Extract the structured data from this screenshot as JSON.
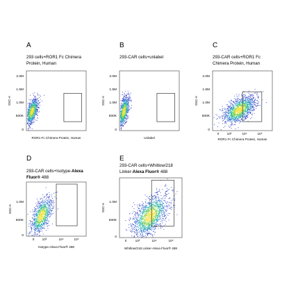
{
  "chart_data": [
    {
      "type": "scatter",
      "letter": "A",
      "title_lines": [
        "293 cells+ROR1 Fc Chimera",
        "Protein, Human"
      ],
      "xlabel": "ROR1 Fc Chimera Protein, Human",
      "ylabel": "SSC-A",
      "x_scale": "log",
      "x_ticks": [],
      "y_ticks": [
        "0",
        "500K",
        "1.0M",
        "1.5M",
        "2.0M"
      ],
      "ylim": [
        0,
        2000000
      ],
      "gate": {
        "x": [
          1000,
          100000
        ],
        "y": [
          300000,
          1250000
        ]
      },
      "population": {
        "center_x_log10": -0.6,
        "center_y": 650000,
        "spread_x_log10": 0.35,
        "spread_y": 220000,
        "count": 900
      }
    },
    {
      "type": "scatter",
      "letter": "B",
      "title_lines": [
        "293-CAR cells+unlabel"
      ],
      "xlabel": "Unlabel",
      "ylabel": "SSC-A",
      "x_scale": "log",
      "x_ticks": [],
      "y_ticks": [
        "0",
        "500K",
        "1.0M",
        "1.5M",
        "2.0M"
      ],
      "ylim": [
        0,
        2000000
      ],
      "gate": {
        "x": [
          1000,
          100000
        ],
        "y": [
          300000,
          1250000
        ]
      },
      "population": {
        "center_x_log10": -0.75,
        "center_y": 650000,
        "spread_x_log10": 0.3,
        "spread_y": 260000,
        "count": 900
      }
    },
    {
      "type": "scatter",
      "letter": "C",
      "title_lines": [
        "293-CAR cells+ROR1 Fc",
        "Chimera Protein, Human"
      ],
      "xlabel": "ROR1 Fc Chimera Protein, Human",
      "ylabel": "SSC-A",
      "x_scale": "log",
      "x_ticks": [
        "0",
        "10³",
        "10⁴",
        "10⁵"
      ],
      "y_ticks": [
        "0",
        "500K",
        "1.0M",
        "1.5M",
        "2.0M"
      ],
      "ylim": [
        0,
        2000000
      ],
      "gate": {
        "x": [
          8000,
          100000
        ],
        "y": [
          300000,
          1300000
        ]
      },
      "population": {
        "center_x_log10": 3.7,
        "center_y": 700000,
        "spread_x_log10": 0.45,
        "spread_y": 230000,
        "count": 1400
      }
    },
    {
      "type": "scatter",
      "letter": "D",
      "title_prefix": "293-CAR cells+Isotype-",
      "title_bold_1": "Alexa",
      "title_bold_2": "Fluor®",
      "title_suffix": " 488",
      "xlabel": "Isotype-Alexa Fluor® 488",
      "ylabel": "SSC-A",
      "x_scale": "log",
      "x_ticks": [
        "0",
        "10³",
        "10⁴",
        "10⁵"
      ],
      "y_ticks": [
        "0",
        "500K",
        "1.0M"
      ],
      "ylim": [
        0,
        1300000
      ],
      "gate": {
        "x": [
          4000,
          100000
        ],
        "y": [
          250000,
          1250000
        ]
      },
      "population": {
        "center_x_log10": 2.6,
        "center_y": 500000,
        "spread_x_log10": 0.35,
        "spread_y": 220000,
        "count": 1000
      }
    },
    {
      "type": "scatter",
      "letter": "E",
      "title_line_1": "293-CAR   cells+Whitlow/218",
      "title_prefix": "Linker-",
      "title_bold": "Alexa Fluor®",
      "title_suffix": " 488",
      "xlabel": "Whitlow/218 Linker-Alexa Fluor® 488",
      "ylabel": "SSC-A",
      "x_scale": "log",
      "x_ticks": [
        "0",
        "10³",
        "10⁴",
        "10⁵"
      ],
      "y_ticks": [
        "0",
        "500K",
        "1.0M"
      ],
      "ylim": [
        0,
        1300000
      ],
      "gate": {
        "x": [
          4000,
          100000
        ],
        "y": [
          250000,
          1250000
        ]
      },
      "population": {
        "center_x_log10": 3.5,
        "center_y": 480000,
        "spread_x_log10": 0.55,
        "spread_y": 230000,
        "count": 1500
      }
    }
  ]
}
